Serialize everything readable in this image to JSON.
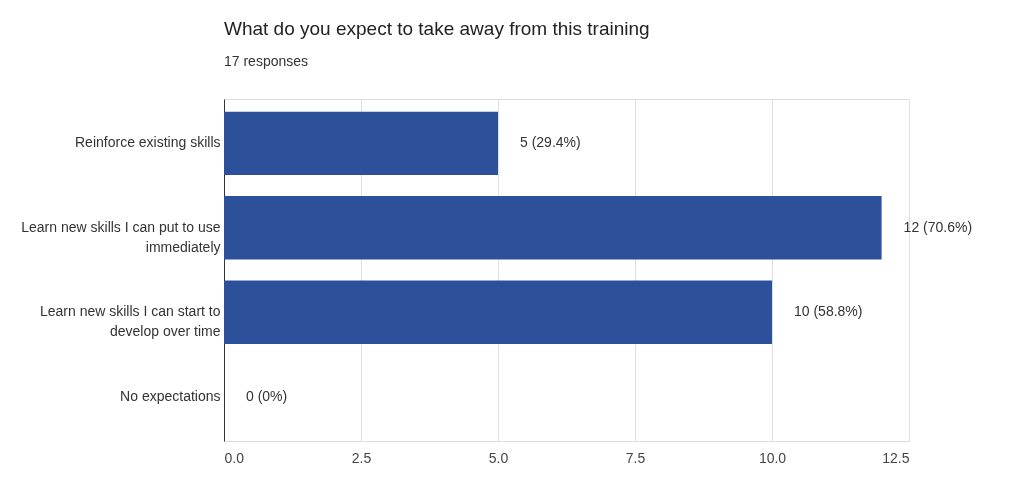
{
  "chart_data": {
    "type": "bar",
    "orientation": "horizontal",
    "title": "What do you expect to take away from this training",
    "subtitle": "17 responses",
    "categories": [
      "Reinforce existing skills",
      "Learn new skills I can put to use\nimmediately",
      "Learn new skills I can start to\ndevelop over time",
      "No expectations"
    ],
    "values": [
      5,
      12,
      10,
      0
    ],
    "color": "#2d509a",
    "value_labels": [
      "5 (29.4%)",
      "12 (70.6%)",
      "10 (58.8%)",
      "0 (0%)"
    ],
    "xlim": [
      0,
      12.5
    ],
    "xticks": [
      {
        "value": 0,
        "label": "0.0"
      },
      {
        "value": 2.5,
        "label": "2.5"
      },
      {
        "value": 5,
        "label": "5.0"
      },
      {
        "value": 7.5,
        "label": "7.5"
      },
      {
        "value": 10,
        "label": "10.0"
      },
      {
        "value": 12.5,
        "label": "12.5"
      }
    ],
    "grid": "x"
  }
}
